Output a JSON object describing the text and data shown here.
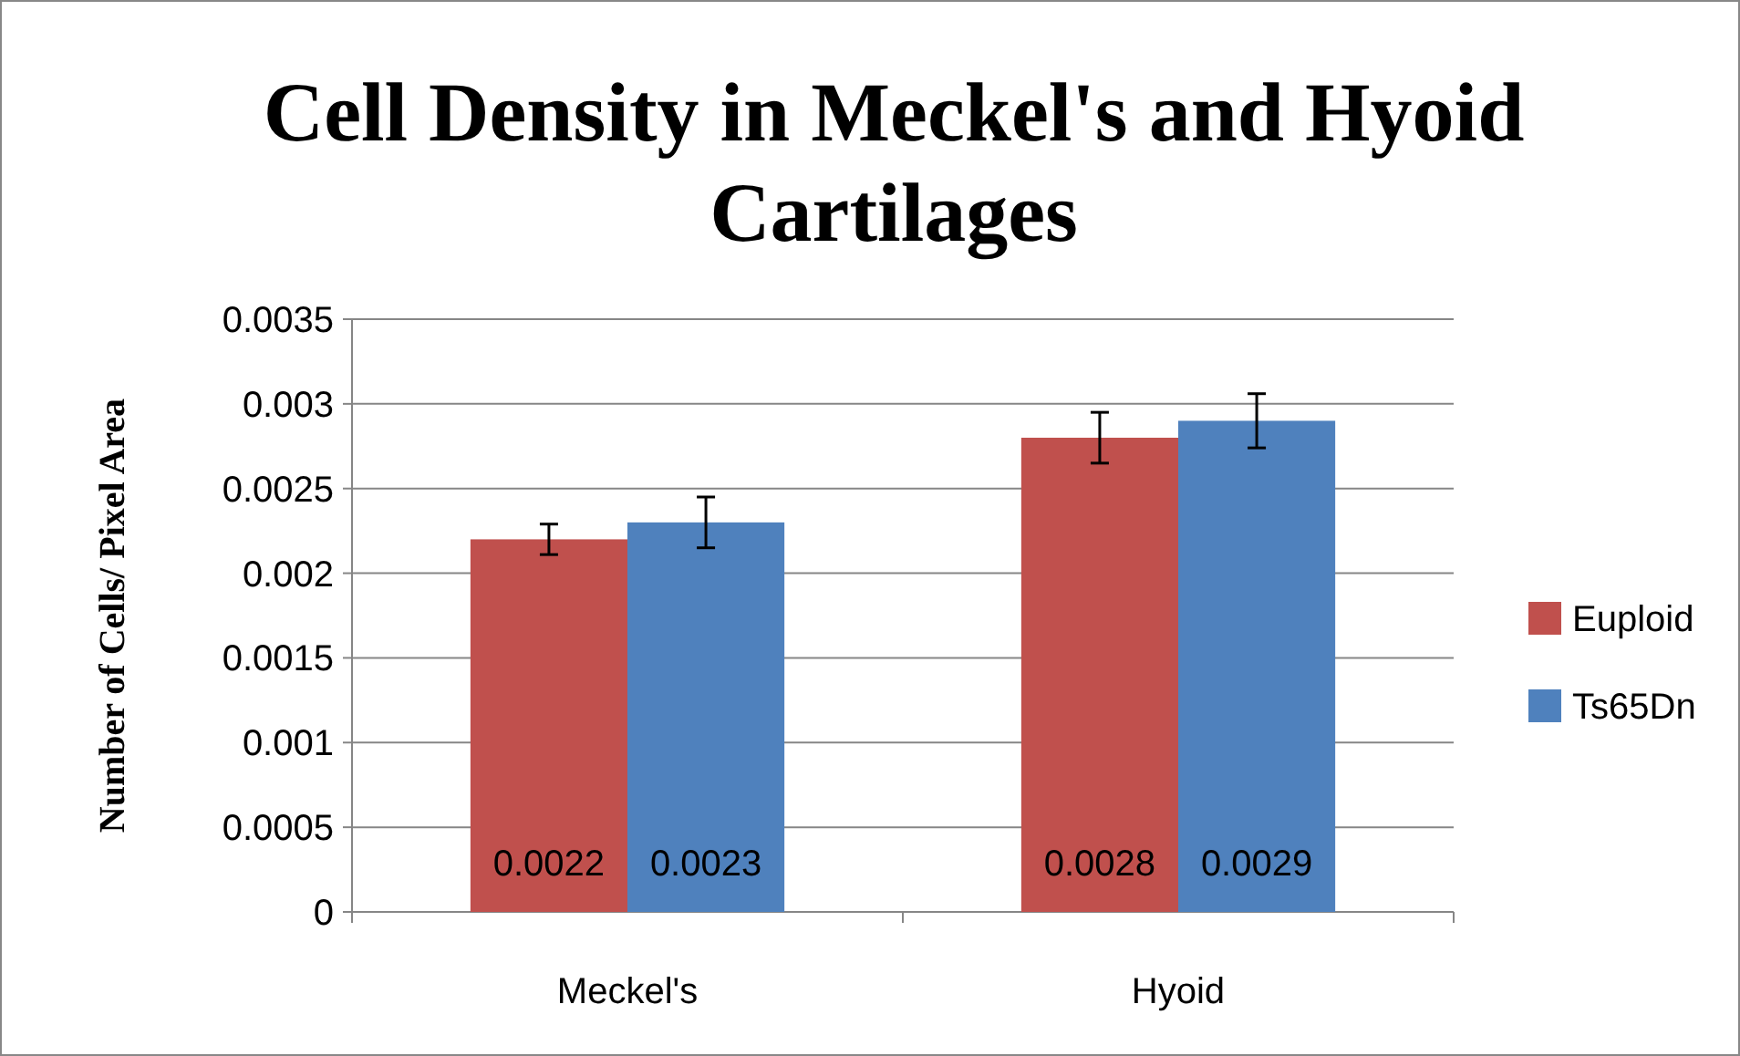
{
  "chart_data": {
    "type": "bar",
    "title": "Cell Density in Meckel's and Hyoid Cartilages",
    "ylabel": "Number of Cells/ Pixel Area",
    "categories": [
      "Meckel's",
      "Hyoid"
    ],
    "series": [
      {
        "name": "Euploid",
        "color": "#c0504d",
        "values": [
          0.0022,
          0.0028
        ],
        "errors": [
          9e-05,
          0.00015
        ]
      },
      {
        "name": "Ts65Dn",
        "color": "#4f81bd",
        "values": [
          0.0023,
          0.0029
        ],
        "errors": [
          0.00015,
          0.00016
        ]
      }
    ],
    "ylim": [
      0,
      0.0035
    ],
    "yticks": [
      0,
      0.0005,
      0.001,
      0.0015,
      0.002,
      0.0025,
      0.003,
      0.0035
    ],
    "grid": "y",
    "legend": "right",
    "data_labels": true
  }
}
